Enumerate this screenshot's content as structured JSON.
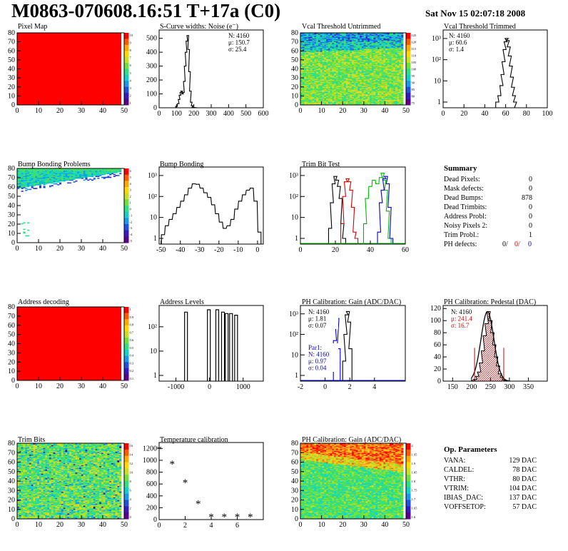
{
  "header": {
    "title": "M0863-070608.16:51 T+17a (C0)",
    "date": "Sat Nov 15 02:07:18 2008"
  },
  "chart_data": [
    {
      "id": "pixel-map",
      "type": "heatmap",
      "title": "Pixel Map",
      "xticks": [
        "0",
        "10",
        "20",
        "30",
        "40",
        "50"
      ],
      "yticks": [
        "0",
        "10",
        "20",
        "30",
        "40",
        "50",
        "60",
        "70",
        "80"
      ],
      "colorbar_ticks": [
        "10",
        "9",
        "8",
        "7",
        "6",
        "5",
        "4",
        "3",
        "2",
        "1"
      ],
      "fill": "uniform red (all pixels alive)"
    },
    {
      "id": "scurve-noise",
      "type": "line",
      "title": "S-Curve widths: Noise (e⁻)",
      "xticks": [
        "0",
        "100",
        "200",
        "300",
        "400",
        "500",
        "600"
      ],
      "yticks": [
        "0",
        "100",
        "200",
        "300",
        "400",
        "500"
      ],
      "xlim": [
        0,
        600
      ],
      "ylim": [
        0,
        560
      ],
      "x": [
        90,
        100,
        110,
        115,
        120,
        125,
        130,
        135,
        140,
        145,
        150,
        155,
        160,
        165,
        170,
        175,
        180,
        185,
        190,
        195,
        200,
        210,
        220,
        230,
        240
      ],
      "values": [
        0,
        10,
        30,
        60,
        90,
        110,
        120,
        100,
        110,
        190,
        300,
        400,
        480,
        520,
        420,
        260,
        120,
        40,
        15,
        5,
        2,
        1,
        0,
        0,
        0
      ],
      "stats": {
        "N": "N: 4160",
        "mu": "μ: 150.7",
        "sigma": "σ: 25.4"
      }
    },
    {
      "id": "vcal-untrimmed",
      "type": "heatmap",
      "title": "Vcal Threshold Untrimmed",
      "xticks": [
        "0",
        "10",
        "20",
        "30",
        "40",
        "50"
      ],
      "yticks": [
        "0",
        "10",
        "20",
        "30",
        "40",
        "50",
        "60",
        "70",
        "80"
      ],
      "colorbar_ticks": [
        "125",
        "120",
        "115",
        "110",
        "105",
        "100",
        "95",
        "90",
        "85",
        "80",
        "75"
      ]
    },
    {
      "id": "vcal-trimmed",
      "type": "line",
      "title": "Vcal Threshold Trimmed",
      "log_y": true,
      "xticks": [
        "0",
        "20",
        "40",
        "60",
        "80",
        "100"
      ],
      "yticks": [
        "1",
        "10",
        "10²",
        "10³"
      ],
      "xlim": [
        0,
        100
      ],
      "x": [
        52,
        54,
        56,
        57,
        58,
        59,
        60,
        61,
        62,
        63,
        64,
        65,
        66,
        67,
        68,
        69,
        70
      ],
      "values": [
        1,
        2,
        6,
        20,
        80,
        300,
        700,
        1000,
        800,
        400,
        150,
        50,
        15,
        5,
        2,
        1,
        0
      ],
      "stats": {
        "N": "N: 4160",
        "mu": "μ: 60.6",
        "sigma": "σ:  1.4"
      }
    },
    {
      "id": "bump-problems",
      "type": "heatmap",
      "title": "Bump Bonding Problems",
      "xticks": [
        "0",
        "10",
        "20",
        "30",
        "40",
        "50"
      ],
      "yticks": [
        "0",
        "10",
        "20",
        "30",
        "40",
        "50",
        "60",
        "70",
        "80"
      ],
      "colorbar_ticks": [
        "6",
        "5",
        "4",
        "3",
        "2",
        "1",
        "0",
        "-1",
        "-2",
        "-3",
        "-4",
        "-5"
      ]
    },
    {
      "id": "bump-bonding",
      "type": "line",
      "title": "Bump Bonding",
      "log_y": true,
      "xticks": [
        "-50",
        "-40",
        "-30",
        "-20",
        "-10",
        "0"
      ],
      "yticks": [
        "1",
        "10",
        "10²",
        "10³"
      ],
      "xlim": [
        -51,
        3
      ],
      "x": [
        -49,
        -47,
        -45,
        -43,
        -41,
        -39,
        -37,
        -35,
        -33,
        -31,
        -29,
        -27,
        -25,
        -23,
        -21,
        -19,
        -17,
        -15,
        -13,
        -11,
        -9,
        -7,
        -5,
        -3,
        -1,
        1
      ],
      "values": [
        1.5,
        4,
        8,
        15,
        30,
        60,
        120,
        250,
        400,
        380,
        250,
        150,
        90,
        40,
        15,
        6,
        3,
        4,
        8,
        25,
        60,
        120,
        200,
        250,
        60,
        2
      ]
    },
    {
      "id": "trim-bit-test",
      "type": "line",
      "title": "Trim Bit Test",
      "log_y": true,
      "xticks": [
        "0",
        "20",
        "40",
        "60"
      ],
      "yticks": [
        "1",
        "10",
        "10²",
        "10³"
      ],
      "xlim": [
        0,
        60
      ],
      "series": [
        {
          "color": "#000000",
          "x": [
            17,
            18,
            19,
            20,
            21,
            22,
            23,
            24,
            25
          ],
          "values": [
            3,
            50,
            400,
            900,
            600,
            300,
            80,
            5,
            1
          ]
        },
        {
          "color": "#d40000",
          "x": [
            24,
            25,
            26,
            27,
            28,
            29,
            30,
            31,
            32
          ],
          "values": [
            5,
            100,
            500,
            700,
            500,
            200,
            30,
            2,
            1
          ]
        },
        {
          "color": "#00bb00",
          "x": [
            37,
            38,
            40,
            42,
            44,
            46,
            47,
            48,
            49,
            50,
            51
          ],
          "values": [
            5,
            80,
            300,
            600,
            400,
            800,
            1300,
            600,
            200,
            20,
            1
          ]
        },
        {
          "color": "#0000cc",
          "x": [
            45,
            46,
            47,
            48,
            49,
            50,
            51,
            52
          ],
          "values": [
            2,
            50,
            200,
            700,
            900,
            400,
            30,
            1
          ]
        }
      ]
    },
    {
      "id": "address-decoding",
      "type": "heatmap",
      "title": "Address decoding",
      "xticks": [
        "0",
        "10",
        "20",
        "30",
        "40",
        "50"
      ],
      "yticks": [
        "0",
        "10",
        "20",
        "30",
        "40",
        "50",
        "60",
        "70",
        "80"
      ],
      "colorbar_ticks": [
        "1",
        "0.9",
        "0.8",
        "0.7",
        "0.6",
        "0.5",
        "0.4",
        "0.3",
        "0.2",
        "0.1"
      ],
      "fill": "uniform red"
    },
    {
      "id": "address-levels",
      "type": "bar",
      "title": "Address Levels",
      "log_y": true,
      "xticks": [
        "-1000",
        "0",
        "1000"
      ],
      "yticks": [
        "1",
        "10",
        "10²"
      ],
      "xlim": [
        -1500,
        1600
      ],
      "x": [
        -700,
        -20,
        230,
        400,
        510,
        640,
        790
      ],
      "values": [
        400,
        500,
        500,
        400,
        350,
        350,
        300
      ]
    },
    {
      "id": "ph-gain",
      "type": "line",
      "title": "PH Calibration: Gain (ADC/DAC)",
      "log_y": true,
      "xticks": [
        "-2",
        "0",
        "2",
        "4"
      ],
      "yticks": [
        "1",
        "10",
        "10²",
        "10³"
      ],
      "xlim": [
        -2,
        6.5
      ],
      "series": [
        {
          "color": "#000000",
          "x": [
            1.55,
            1.65,
            1.75,
            1.85,
            1.95,
            2.05
          ],
          "values": [
            5,
            100,
            900,
            1300,
            400,
            20
          ]
        },
        {
          "color": "#0000cc",
          "x": [
            0.8,
            0.9,
            1.0,
            1.1
          ],
          "values": [
            50,
            800,
            600,
            20
          ]
        }
      ],
      "stats": {
        "N": "N: 4160",
        "mu": "μ: 1.81",
        "sigma": "σ: 0.07"
      },
      "stats2": {
        "name": "Par1:",
        "N": "N: 4160",
        "mu": "μ: 0.97",
        "sigma": "σ: 0.04"
      }
    },
    {
      "id": "ph-pedestal",
      "type": "bar",
      "title": "PH Calibration: Pedestal (DAC)",
      "xticks": [
        "150",
        "200",
        "250",
        "300",
        "350"
      ],
      "yticks": [
        "0",
        "20",
        "40",
        "60",
        "80",
        "100",
        "120"
      ],
      "xlim": [
        125,
        400
      ],
      "ylim": [
        0,
        125
      ],
      "x": [
        205,
        210,
        215,
        220,
        225,
        230,
        235,
        240,
        245,
        250,
        255,
        260,
        265,
        270,
        275,
        280,
        285,
        290
      ],
      "values": [
        1,
        3,
        8,
        15,
        30,
        50,
        75,
        95,
        115,
        100,
        80,
        60,
        40,
        25,
        12,
        6,
        2,
        1
      ],
      "stats": {
        "N": "N: 4160",
        "mu": "μ: 241.4",
        "sigma": "σ: 16.7"
      }
    },
    {
      "id": "trim-bits",
      "type": "heatmap",
      "title": "Trim Bits",
      "xticks": [
        "0",
        "10",
        "20",
        "30",
        "40",
        "50"
      ],
      "yticks": [
        "0",
        "10",
        "20",
        "30",
        "40",
        "50",
        "60",
        "70",
        "80"
      ],
      "colorbar_ticks": [
        "16",
        "14",
        "12",
        "10",
        "8",
        "6",
        "4",
        "2",
        "0"
      ]
    },
    {
      "id": "temp-calibration",
      "type": "scatter",
      "title": "Temperature calibration",
      "xticks": [
        "0",
        "2",
        "4",
        "6"
      ],
      "yticks": [
        "0",
        "200",
        "400",
        "600",
        "800",
        "1000",
        "1200"
      ],
      "xlim": [
        0,
        8
      ],
      "ylim": [
        0,
        1300
      ],
      "x": [
        0,
        1,
        2,
        3,
        4,
        5,
        6,
        7
      ],
      "values": [
        1200,
        950,
        640,
        280,
        60,
        60,
        60,
        60
      ]
    },
    {
      "id": "ph-gain-map",
      "type": "heatmap",
      "title": "PH Calibration: Gain (ADC/DAC)",
      "xticks": [
        "0",
        "10",
        "20",
        "30",
        "40",
        "50"
      ],
      "yticks": [
        "0",
        "10",
        "20",
        "30",
        "40",
        "50",
        "60",
        "70",
        "80"
      ],
      "colorbar_ticks": [
        "2",
        "1.95",
        "1.9",
        "1.85",
        "1.8",
        "1.75",
        "1.7",
        "1.65",
        "1.6"
      ]
    }
  ],
  "summary": {
    "title": "Summary",
    "rows": [
      {
        "label": "Dead Pixels:",
        "value": "0"
      },
      {
        "label": "Mask defects:",
        "value": "0"
      },
      {
        "label": "Dead Bumps:",
        "value": "878"
      },
      {
        "label": "Dead Trimbits:",
        "value": "0"
      },
      {
        "label": "Address Probl:",
        "value": "0"
      },
      {
        "label": "Noisy Pixels 2:",
        "value": "0"
      },
      {
        "label": "Trim Probl.:",
        "value": "1"
      }
    ],
    "ph_defects": {
      "label": "PH defects:",
      "v1": "0/",
      "v2": "0/",
      "v3": "0"
    }
  },
  "op_params": {
    "title": "Op. Parameters",
    "rows": [
      {
        "label": "VANA:",
        "value": "129 DAC"
      },
      {
        "label": "CALDEL:",
        "value": "78 DAC"
      },
      {
        "label": "VTHR:",
        "value": "80 DAC"
      },
      {
        "label": "VTRIM:",
        "value": "104 DAC"
      },
      {
        "label": "IBIAS_DAC:",
        "value": "137 DAC"
      },
      {
        "label": "VOFFSETOP:",
        "value": "57 DAC"
      }
    ]
  }
}
